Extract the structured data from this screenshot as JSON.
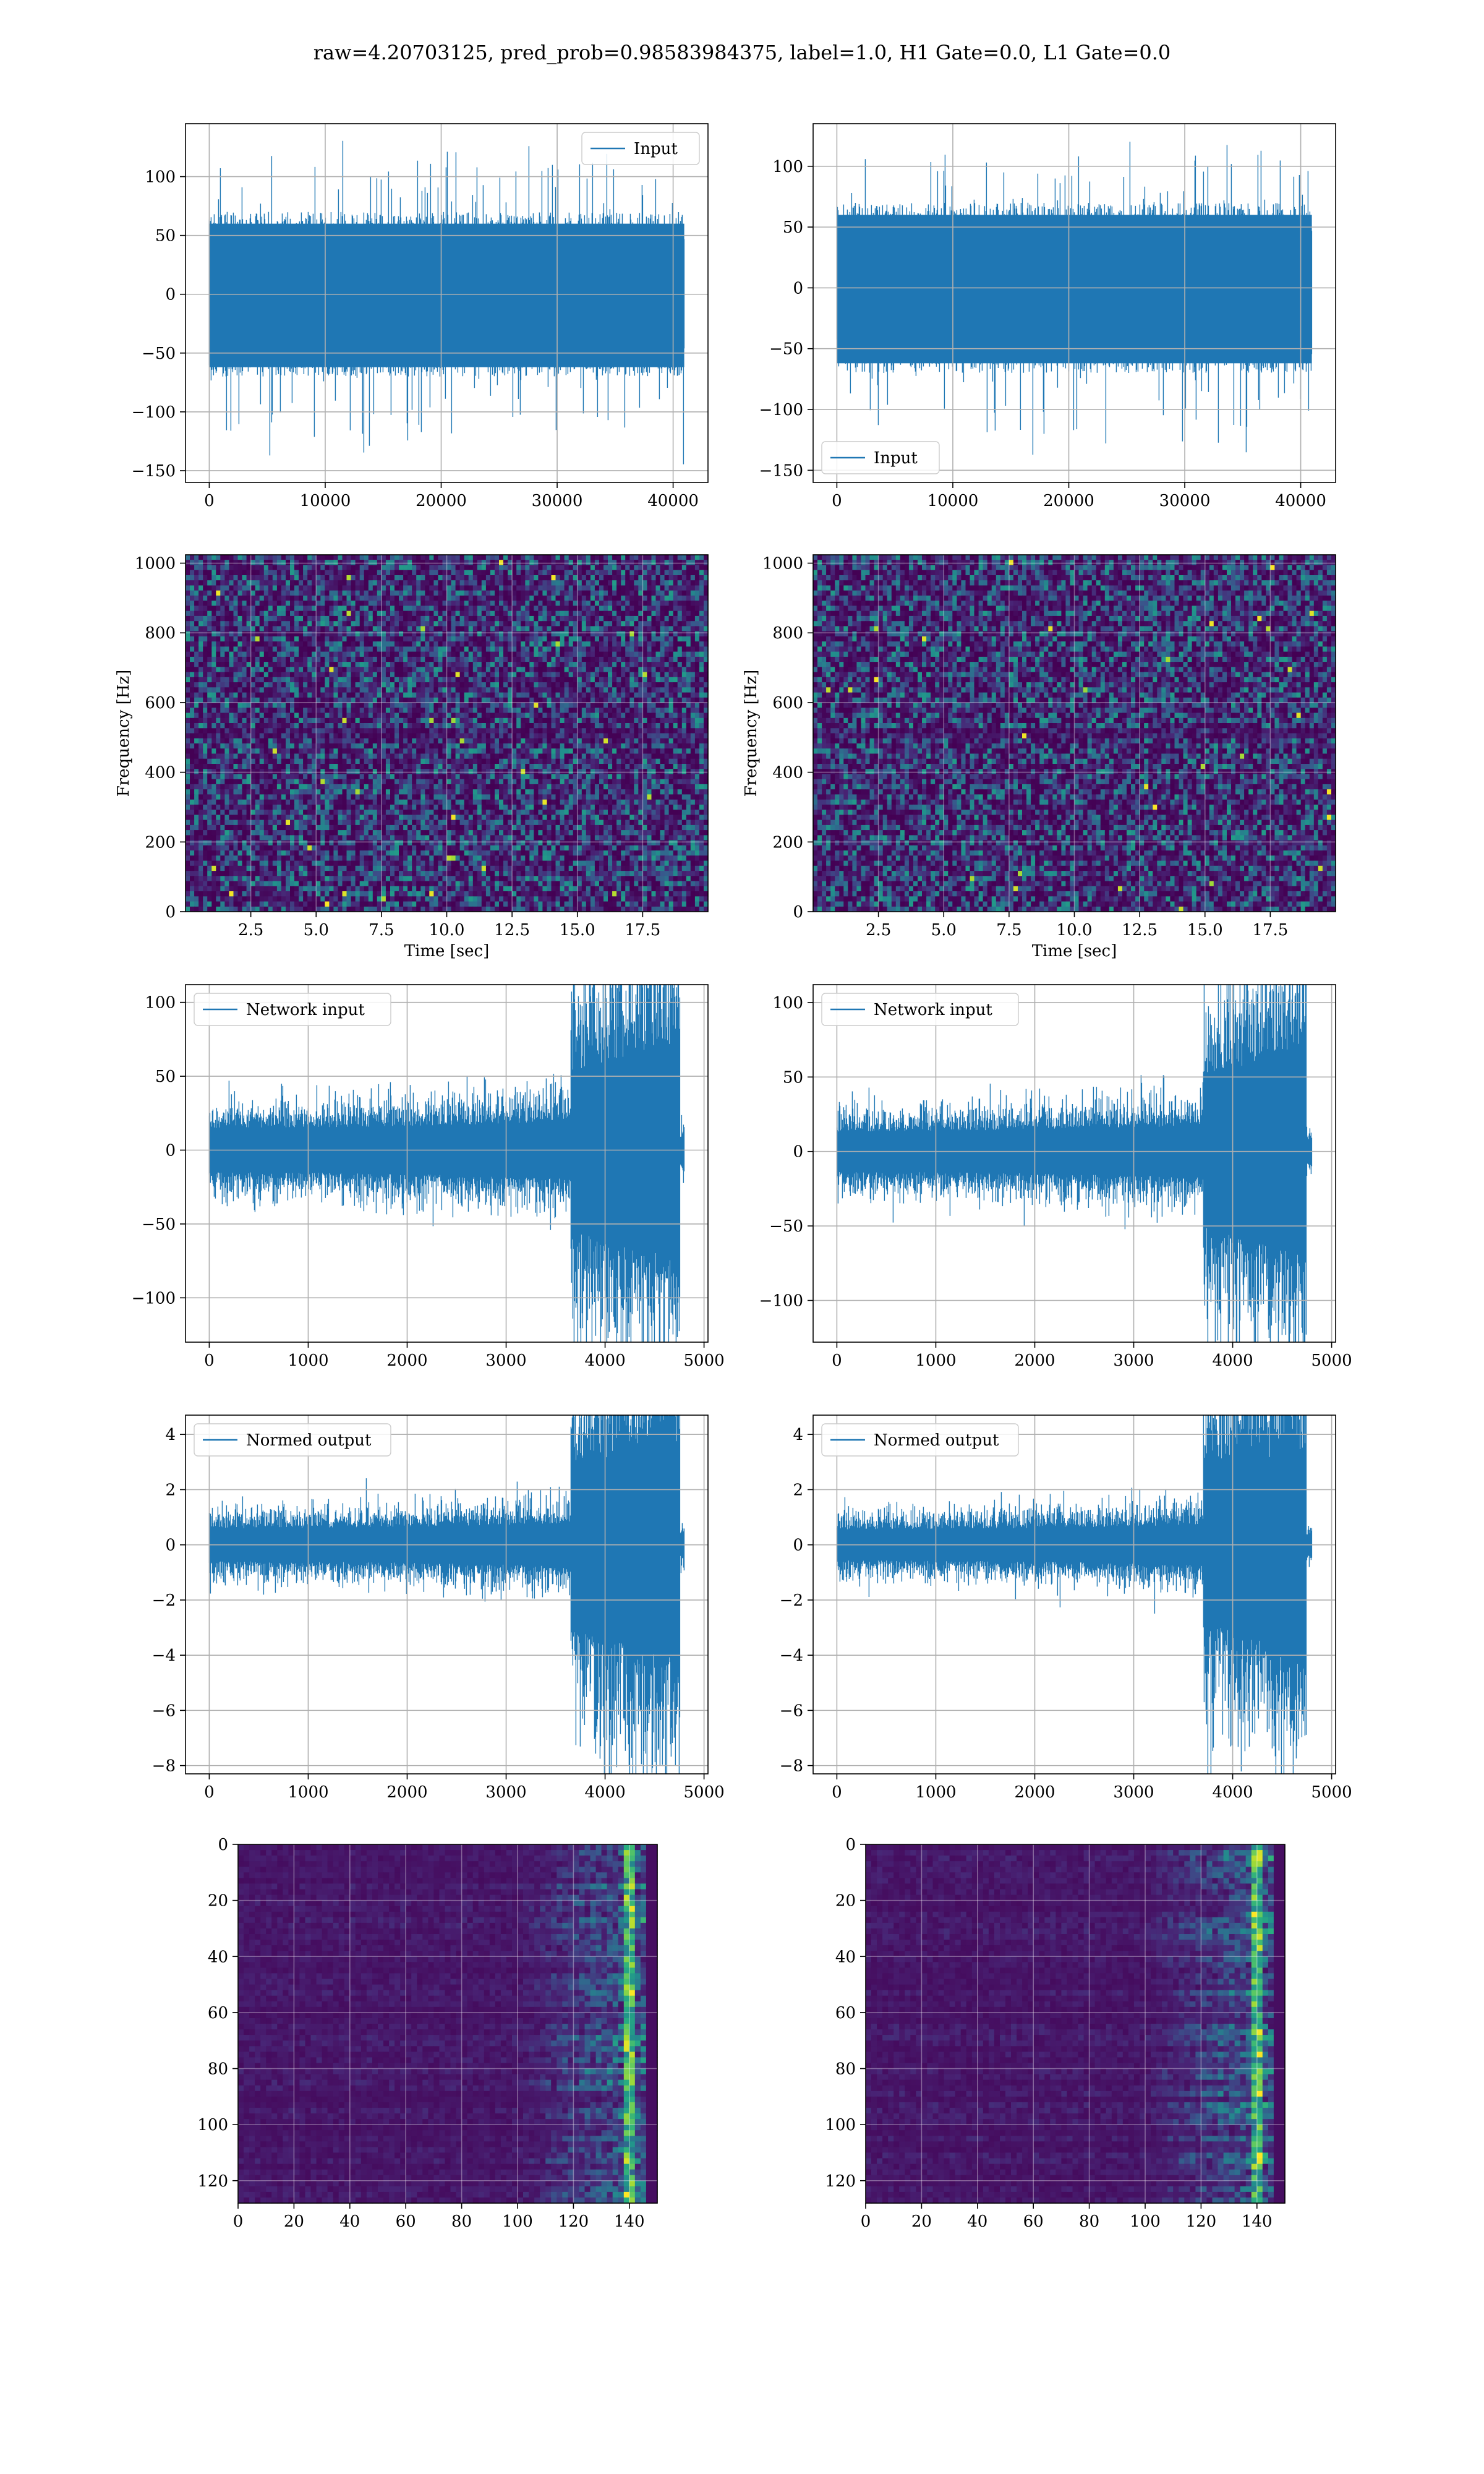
{
  "figure": {
    "title": "raw=4.20703125, pred_prob=0.98583984375, label=1.0, H1 Gate=0.0, L1 Gate=0.0",
    "line_color": "#1f77b4"
  },
  "chart_data": [
    {
      "id": "raw-h1",
      "type": "line",
      "panel": "row1-left",
      "legend": "Input",
      "legend_loc": "upper right",
      "xlim": [
        -2048,
        43008
      ],
      "ylim": [
        -160,
        145
      ],
      "xticks": [
        0,
        10000,
        20000,
        30000,
        40000
      ],
      "xticklabels": [
        "0",
        "10000",
        "20000",
        "30000",
        "40000"
      ],
      "yticks": [
        -150,
        -100,
        -50,
        0,
        50,
        100
      ],
      "yticklabels": [
        "−150",
        "−100",
        "−50",
        "0",
        "50",
        "100"
      ],
      "xlabel": "",
      "ylabel": "",
      "grid": true,
      "signal": {
        "n_samples": 40960,
        "envelope_peak": 138,
        "envelope_trough": -145
      }
    },
    {
      "id": "raw-l1",
      "type": "line",
      "panel": "row1-right",
      "legend": "Input",
      "legend_loc": "lower left",
      "xlim": [
        -2048,
        43008
      ],
      "ylim": [
        -160,
        135
      ],
      "xticks": [
        0,
        10000,
        20000,
        30000,
        40000
      ],
      "xticklabels": [
        "0",
        "10000",
        "20000",
        "30000",
        "40000"
      ],
      "yticks": [
        -150,
        -100,
        -50,
        0,
        50,
        100
      ],
      "yticklabels": [
        "−150",
        "−100",
        "−50",
        "0",
        "50",
        "100"
      ],
      "xlabel": "",
      "ylabel": "",
      "grid": true,
      "signal": {
        "n_samples": 40960,
        "envelope_peak": 128,
        "envelope_trough": -148
      }
    },
    {
      "id": "spec-h1",
      "type": "heatmap",
      "panel": "row2-left",
      "colormap": "viridis",
      "xlim": [
        0,
        20
      ],
      "ylim": [
        0,
        1024
      ],
      "xticks": [
        2.5,
        5,
        7.5,
        10,
        12.5,
        15,
        17.5
      ],
      "xticklabels": [
        "2.5",
        "5.0",
        "7.5",
        "10.0",
        "12.5",
        "15.0",
        "17.5"
      ],
      "yticks": [
        0,
        200,
        400,
        600,
        800,
        1000
      ],
      "yticklabels": [
        "0",
        "200",
        "400",
        "600",
        "800",
        "1000"
      ],
      "xlabel": "Time [sec]",
      "ylabel": "Frequency [Hz]",
      "grid": true
    },
    {
      "id": "spec-l1",
      "type": "heatmap",
      "panel": "row2-right",
      "colormap": "viridis",
      "xlim": [
        0,
        20
      ],
      "ylim": [
        0,
        1024
      ],
      "xticks": [
        2.5,
        5,
        7.5,
        10,
        12.5,
        15,
        17.5
      ],
      "xticklabels": [
        "2.5",
        "5.0",
        "7.5",
        "10.0",
        "12.5",
        "15.0",
        "17.5"
      ],
      "yticks": [
        0,
        200,
        400,
        600,
        800,
        1000
      ],
      "yticklabels": [
        "0",
        "200",
        "400",
        "600",
        "800",
        "1000"
      ],
      "xlabel": "Time [sec]",
      "ylabel": "Frequency [Hz]",
      "grid": true
    },
    {
      "id": "net-h1",
      "type": "line",
      "panel": "row3-left",
      "legend": "Network input",
      "legend_loc": "upper left",
      "xlim": [
        -240,
        5040
      ],
      "ylim": [
        -130,
        112
      ],
      "xticks": [
        0,
        1000,
        2000,
        3000,
        4000,
        5000
      ],
      "xticklabels": [
        "0",
        "1000",
        "2000",
        "3000",
        "4000",
        "5000"
      ],
      "yticks": [
        -100,
        -50,
        0,
        50,
        100
      ],
      "yticklabels": [
        "−100",
        "−50",
        "0",
        "50",
        "100"
      ],
      "xlabel": "",
      "ylabel": "",
      "grid": true,
      "signal": {
        "n_samples": 4800,
        "baseline_amp": 20,
        "burst_start": 3650,
        "burst_end": 4760,
        "burst_peak": 105,
        "burst_trough": -118
      }
    },
    {
      "id": "net-l1",
      "type": "line",
      "panel": "row3-right",
      "legend": "Network input",
      "legend_loc": "upper left",
      "xlim": [
        -240,
        5040
      ],
      "ylim": [
        -128,
        112
      ],
      "xticks": [
        0,
        1000,
        2000,
        3000,
        4000,
        5000
      ],
      "xticklabels": [
        "0",
        "1000",
        "2000",
        "3000",
        "4000",
        "5000"
      ],
      "yticks": [
        -100,
        -50,
        0,
        50,
        100
      ],
      "yticklabels": [
        "−100",
        "−50",
        "0",
        "50",
        "100"
      ],
      "xlabel": "",
      "ylabel": "",
      "grid": true,
      "signal": {
        "n_samples": 4800,
        "baseline_amp": 18,
        "burst_start": 3700,
        "burst_end": 4750,
        "burst_peak": 105,
        "burst_trough": -115
      }
    },
    {
      "id": "norm-h1",
      "type": "line",
      "panel": "row4-left",
      "legend": "Normed output",
      "legend_loc": "upper left",
      "xlim": [
        -240,
        5040
      ],
      "ylim": [
        -8.3,
        4.7
      ],
      "xticks": [
        0,
        1000,
        2000,
        3000,
        4000,
        5000
      ],
      "xticklabels": [
        "0",
        "1000",
        "2000",
        "3000",
        "4000",
        "5000"
      ],
      "yticks": [
        -8,
        -6,
        -4,
        -2,
        0,
        2,
        4
      ],
      "yticklabels": [
        "−8",
        "−6",
        "−4",
        "−2",
        "0",
        "2",
        "4"
      ],
      "xlabel": "",
      "ylabel": "",
      "grid": true,
      "signal": {
        "n_samples": 4800,
        "baseline_amp": 0.8,
        "burst_start": 3650,
        "burst_end": 4760,
        "burst_peak": 4.2,
        "burst_trough": -7.8
      }
    },
    {
      "id": "norm-l1",
      "type": "line",
      "panel": "row4-right",
      "legend": "Normed output",
      "legend_loc": "upper left",
      "xlim": [
        -240,
        5040
      ],
      "ylim": [
        -8.3,
        4.7
      ],
      "xticks": [
        0,
        1000,
        2000,
        3000,
        4000,
        5000
      ],
      "xticklabels": [
        "0",
        "1000",
        "2000",
        "3000",
        "4000",
        "5000"
      ],
      "yticks": [
        -8,
        -6,
        -4,
        -2,
        0,
        2,
        4
      ],
      "yticklabels": [
        "−8",
        "−6",
        "−4",
        "−2",
        "0",
        "2",
        "4"
      ],
      "xlabel": "",
      "ylabel": "",
      "grid": true,
      "signal": {
        "n_samples": 4800,
        "baseline_amp": 0.75,
        "burst_start": 3700,
        "burst_end": 4750,
        "burst_peak": 4.2,
        "burst_trough": -7.6
      }
    },
    {
      "id": "feat-h1",
      "type": "heatmap",
      "panel": "row5-left",
      "colormap": "viridis",
      "y_inverted": true,
      "xlim": [
        0,
        150
      ],
      "ylim": [
        128,
        0
      ],
      "xticks": [
        0,
        20,
        40,
        60,
        80,
        100,
        120,
        140
      ],
      "xticklabels": [
        "0",
        "20",
        "40",
        "60",
        "80",
        "100",
        "120",
        "140"
      ],
      "yticks": [
        0,
        20,
        40,
        60,
        80,
        100,
        120
      ],
      "yticklabels": [
        "0",
        "20",
        "40",
        "60",
        "80",
        "100",
        "120"
      ],
      "xlabel": "",
      "ylabel": "",
      "grid": true,
      "activation_onset": 100,
      "activation_peak_col": 140
    },
    {
      "id": "feat-l1",
      "type": "heatmap",
      "panel": "row5-right",
      "colormap": "viridis",
      "y_inverted": true,
      "xlim": [
        0,
        150
      ],
      "ylim": [
        128,
        0
      ],
      "xticks": [
        0,
        20,
        40,
        60,
        80,
        100,
        120,
        140
      ],
      "xticklabels": [
        "0",
        "20",
        "40",
        "60",
        "80",
        "100",
        "120",
        "140"
      ],
      "yticks": [
        0,
        20,
        40,
        60,
        80,
        100,
        120
      ],
      "yticklabels": [
        "0",
        "20",
        "40",
        "60",
        "80",
        "100",
        "120"
      ],
      "xlabel": "",
      "ylabel": "",
      "grid": true,
      "activation_onset": 100,
      "activation_peak_col": 140
    }
  ]
}
